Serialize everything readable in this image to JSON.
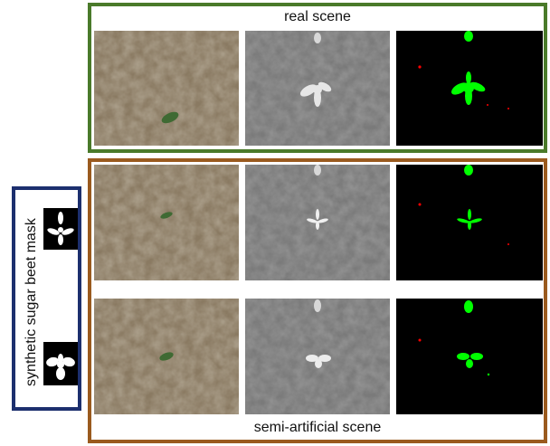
{
  "labels": {
    "real_scene": "real scene",
    "semi_artificial_scene": "semi-artificial scene",
    "synthetic_mask": "synthetic sugar beet mask"
  },
  "colors": {
    "real_frame": "#4a7a2a",
    "semi_frame": "#9a5a1e",
    "mask_frame": "#1c2f6e",
    "crop_class": "#00ff00",
    "weed_class": "#ff0000"
  },
  "rows": [
    {
      "name": "real-scene-row",
      "panels": [
        "rgb-image",
        "nir-image",
        "label-image"
      ]
    },
    {
      "name": "semi-artificial-row-1",
      "panels": [
        "rgb-image",
        "nir-image",
        "label-image"
      ]
    },
    {
      "name": "semi-artificial-row-2",
      "panels": [
        "rgb-image",
        "nir-image",
        "label-image"
      ]
    }
  ]
}
